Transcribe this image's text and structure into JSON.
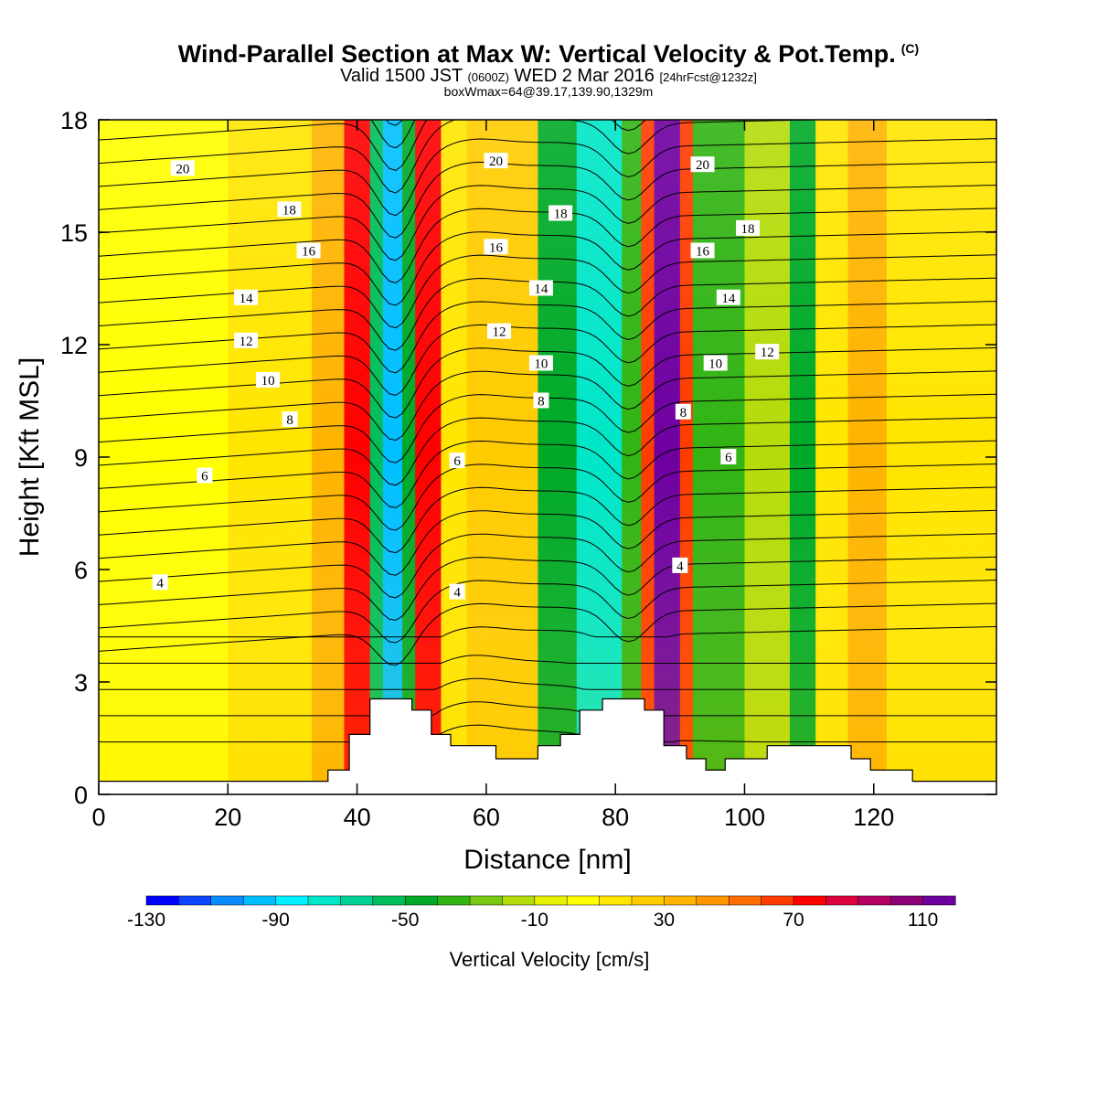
{
  "title": {
    "main": "Wind-Parallel Section at Max W: Vertical Velocity & Pot.Temp.",
    "copyright": "(C)",
    "valid_prefix": "Valid 1500 JST",
    "valid_utc": "(0600Z)",
    "valid_date": "WED 2 Mar 2016",
    "forecast": "[24hrFcst@1232z]",
    "box_info": "boxWmax=64@39.17,139.90,1329m"
  },
  "chart_data": {
    "type": "heatmap",
    "xlabel": "Distance [nm]",
    "ylabel": "Height [Kft MSL]",
    "xlim": [
      0,
      139
    ],
    "ylim": [
      0,
      18
    ],
    "x_ticks": [
      0,
      20,
      40,
      60,
      80,
      100,
      120
    ],
    "y_ticks": [
      0,
      3,
      6,
      9,
      12,
      15,
      18
    ],
    "colorbar": {
      "title": "Vertical Velocity [cm/s]",
      "levels": [
        -130,
        -120,
        -110,
        -100,
        -90,
        -80,
        -70,
        -60,
        -50,
        -40,
        -30,
        -20,
        -10,
        0,
        10,
        20,
        30,
        40,
        50,
        60,
        70,
        80,
        90,
        100,
        110,
        120
      ],
      "tick_labels": [
        "-130",
        "-90",
        "-50",
        "-10",
        "30",
        "70",
        "110"
      ],
      "colors": [
        "#0000ff",
        "#0a46ff",
        "#0a8cff",
        "#00bfff",
        "#00f0ff",
        "#00e6c8",
        "#00d296",
        "#00be5a",
        "#00aa28",
        "#32b414",
        "#78c814",
        "#b4dc0a",
        "#e6f000",
        "#ffff00",
        "#ffe600",
        "#ffcc00",
        "#ffb400",
        "#ff9600",
        "#ff6e00",
        "#ff3c00",
        "#ff0000",
        "#dc003c",
        "#b40064",
        "#8c0078",
        "#6e00a0"
      ]
    },
    "velocity_columns": [
      {
        "x0": 0,
        "x1": 8,
        "value": 5
      },
      {
        "x0": 8,
        "x1": 14,
        "value": 8
      },
      {
        "x0": 14,
        "x1": 20,
        "value": 2
      },
      {
        "x0": 20,
        "x1": 33,
        "value": 10
      },
      {
        "x0": 33,
        "x1": 38,
        "value": 35
      },
      {
        "x0": 38,
        "x1": 42,
        "value": 75
      },
      {
        "x0": 42,
        "x1": 44,
        "value": -55
      },
      {
        "x0": 44,
        "x1": 47,
        "value": -95
      },
      {
        "x0": 47,
        "x1": 49,
        "value": -45
      },
      {
        "x0": 49,
        "x1": 53,
        "value": 75
      },
      {
        "x0": 53,
        "x1": 57,
        "value": 15
      },
      {
        "x0": 57,
        "x1": 68,
        "value": 25
      },
      {
        "x0": 68,
        "x1": 74,
        "value": -50
      },
      {
        "x0": 74,
        "x1": 81,
        "value": -80
      },
      {
        "x0": 81,
        "x1": 84,
        "value": -40
      },
      {
        "x0": 84,
        "x1": 86,
        "value": 60
      },
      {
        "x0": 86,
        "x1": 90,
        "value": 110
      },
      {
        "x0": 90,
        "x1": 92,
        "value": 60
      },
      {
        "x0": 92,
        "x1": 100,
        "value": -40
      },
      {
        "x0": 100,
        "x1": 107,
        "value": -20
      },
      {
        "x0": 107,
        "x1": 111,
        "value": -50
      },
      {
        "x0": 111,
        "x1": 116,
        "value": 10
      },
      {
        "x0": 116,
        "x1": 122,
        "value": 35
      },
      {
        "x0": 122,
        "x1": 139,
        "value": 15
      }
    ],
    "terrain": [
      [
        0,
        0.35
      ],
      [
        35.5,
        0.35
      ],
      [
        35.5,
        0.65
      ],
      [
        38.8,
        0.65
      ],
      [
        38.8,
        1.6
      ],
      [
        42,
        1.6
      ],
      [
        42,
        2.55
      ],
      [
        48.5,
        2.55
      ],
      [
        48.5,
        2.25
      ],
      [
        51.5,
        2.25
      ],
      [
        51.5,
        1.6
      ],
      [
        54.5,
        1.6
      ],
      [
        54.5,
        1.3
      ],
      [
        61.5,
        1.3
      ],
      [
        61.5,
        0.95
      ],
      [
        68,
        0.95
      ],
      [
        68,
        1.3
      ],
      [
        71.5,
        1.3
      ],
      [
        71.5,
        1.6
      ],
      [
        74.5,
        1.6
      ],
      [
        74.5,
        2.25
      ],
      [
        78,
        2.25
      ],
      [
        78,
        2.55
      ],
      [
        84.5,
        2.55
      ],
      [
        84.5,
        2.25
      ],
      [
        87.5,
        2.25
      ],
      [
        87.5,
        1.3
      ],
      [
        91,
        1.3
      ],
      [
        91,
        0.95
      ],
      [
        94,
        0.95
      ],
      [
        94,
        0.65
      ],
      [
        97,
        0.65
      ],
      [
        97,
        0.95
      ],
      [
        103.5,
        0.95
      ],
      [
        103.5,
        1.3
      ],
      [
        116.5,
        1.3
      ],
      [
        116.5,
        0.95
      ],
      [
        119.5,
        0.95
      ],
      [
        119.5,
        0.65
      ],
      [
        126,
        0.65
      ],
      [
        126,
        0.35
      ],
      [
        139,
        0.35
      ]
    ],
    "theta_contour_labels": [
      {
        "value": "20",
        "x": 13,
        "y": 16.7
      },
      {
        "value": "18",
        "x": 29.5,
        "y": 15.6
      },
      {
        "value": "16",
        "x": 32.5,
        "y": 14.5
      },
      {
        "value": "14",
        "x": 22.8,
        "y": 13.25
      },
      {
        "value": "12",
        "x": 22.8,
        "y": 12.1
      },
      {
        "value": "10",
        "x": 26.2,
        "y": 11.05
      },
      {
        "value": "8",
        "x": 29.6,
        "y": 10.0
      },
      {
        "value": "6",
        "x": 16.4,
        "y": 8.5
      },
      {
        "value": "4",
        "x": 9.5,
        "y": 5.65
      },
      {
        "value": "20",
        "x": 61.5,
        "y": 16.9
      },
      {
        "value": "18",
        "x": 71.5,
        "y": 15.5
      },
      {
        "value": "16",
        "x": 61.5,
        "y": 14.6
      },
      {
        "value": "14",
        "x": 68.5,
        "y": 13.5
      },
      {
        "value": "12",
        "x": 62,
        "y": 12.35
      },
      {
        "value": "10",
        "x": 68.5,
        "y": 11.5
      },
      {
        "value": "8",
        "x": 68.5,
        "y": 10.5
      },
      {
        "value": "6",
        "x": 55.5,
        "y": 8.9
      },
      {
        "value": "4",
        "x": 55.5,
        "y": 5.4
      },
      {
        "value": "20",
        "x": 93.5,
        "y": 16.8
      },
      {
        "value": "18",
        "x": 100.5,
        "y": 15.1
      },
      {
        "value": "16",
        "x": 93.5,
        "y": 14.5
      },
      {
        "value": "14",
        "x": 97.5,
        "y": 13.25
      },
      {
        "value": "12",
        "x": 103.5,
        "y": 11.8
      },
      {
        "value": "10",
        "x": 95.5,
        "y": 11.5
      },
      {
        "value": "8",
        "x": 90.5,
        "y": 10.2
      },
      {
        "value": "6",
        "x": 97.5,
        "y": 9.0
      },
      {
        "value": "4",
        "x": 90,
        "y": 6.1
      }
    ]
  }
}
